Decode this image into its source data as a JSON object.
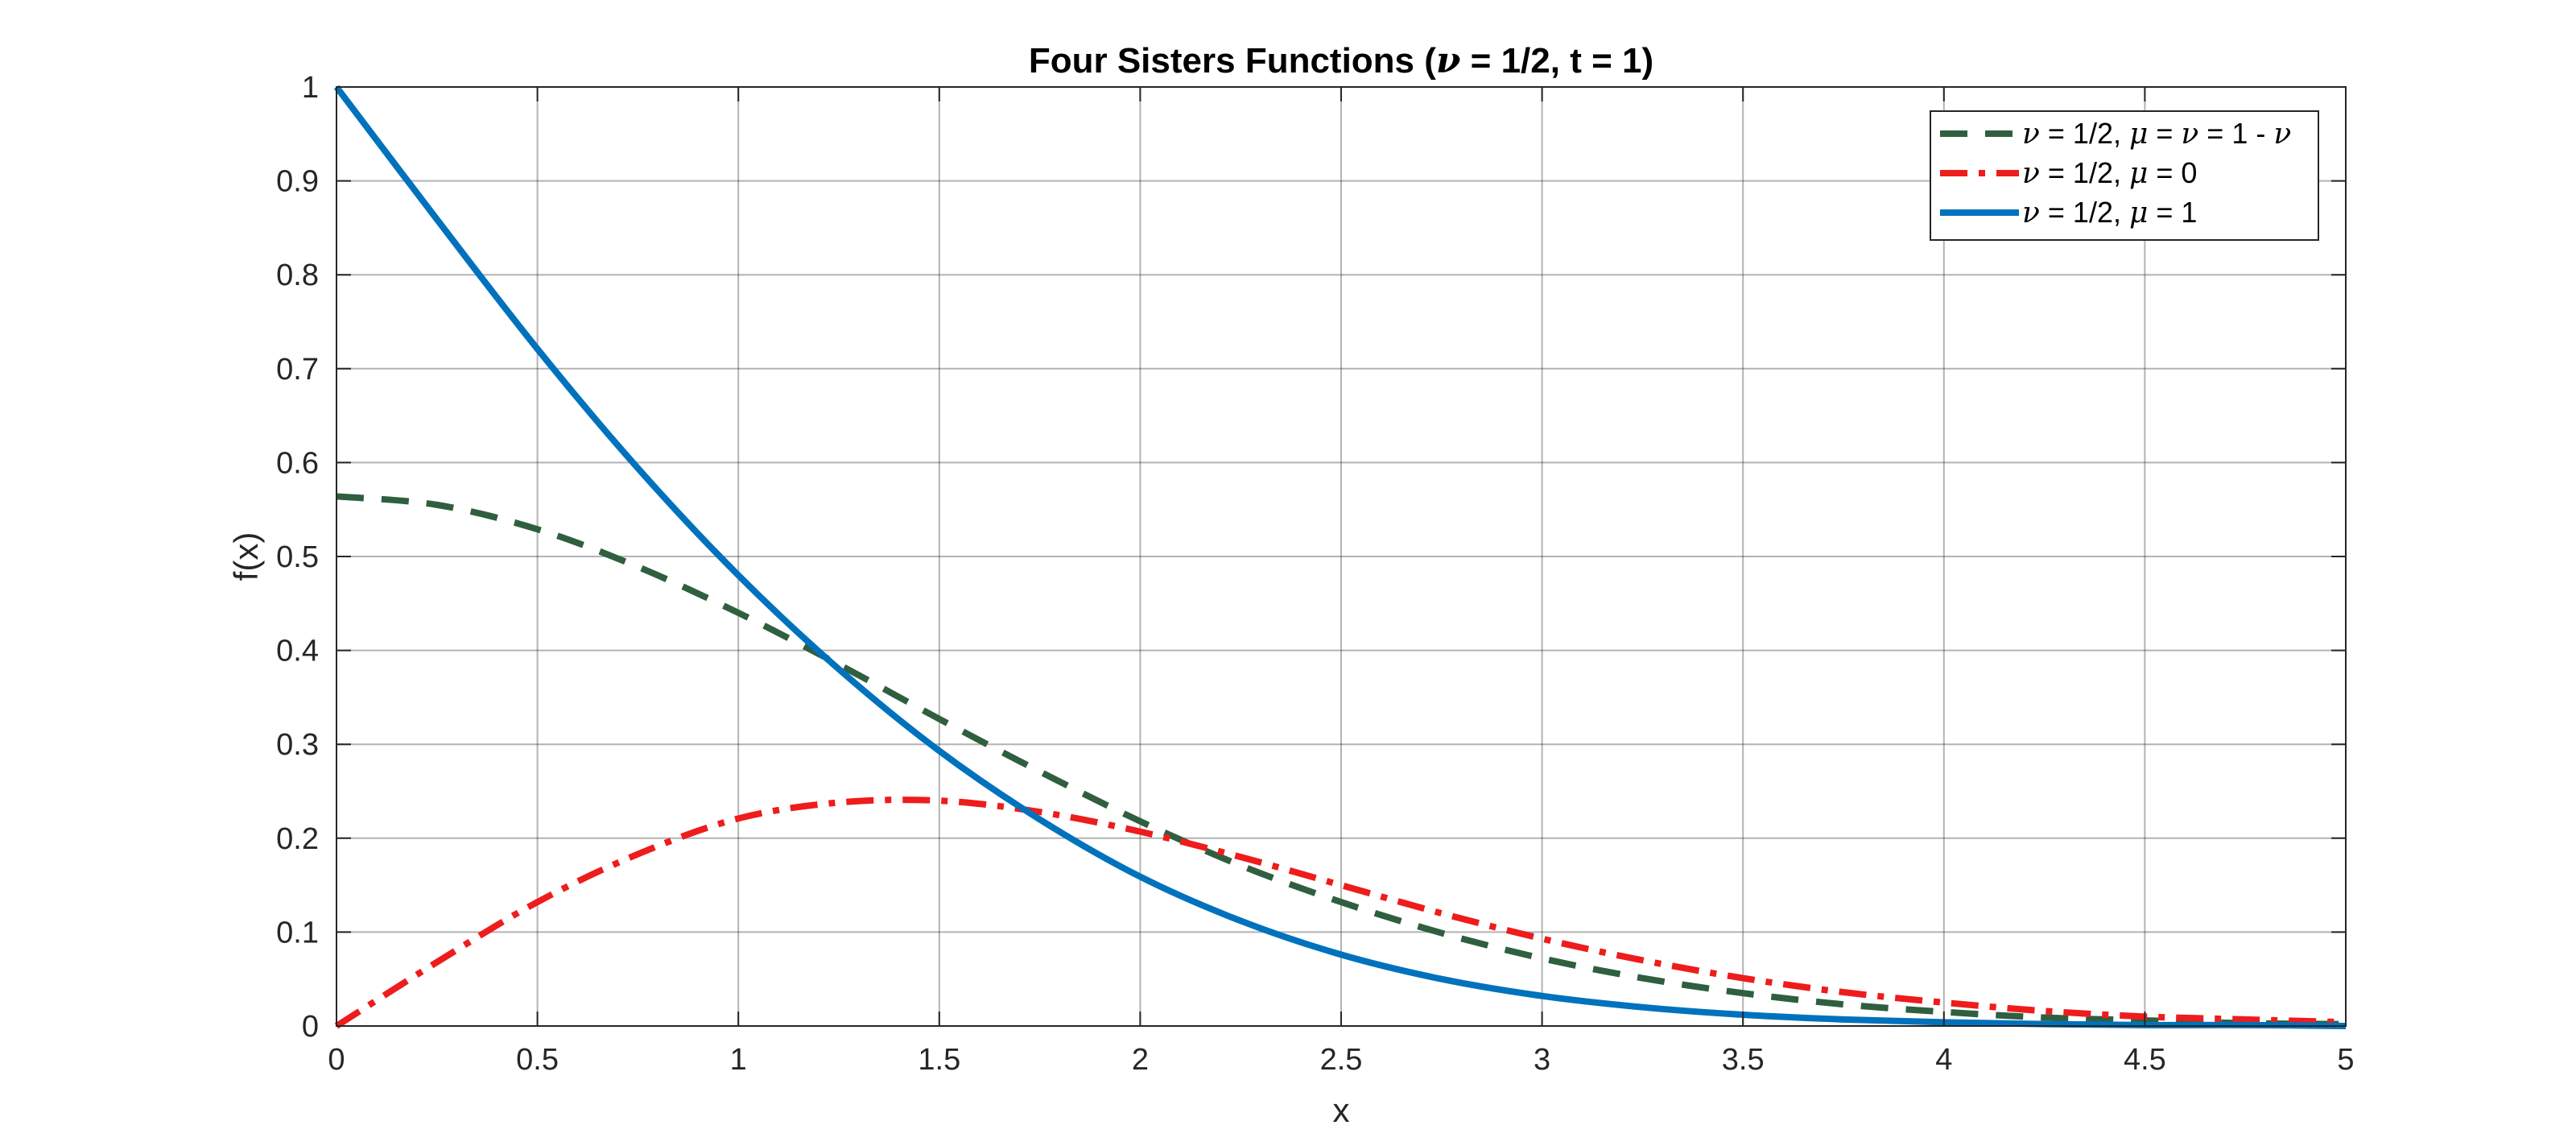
{
  "chart_data": {
    "type": "line",
    "title_parts": [
      {
        "text": "Four Sisters Functions (",
        "greek": false
      },
      {
        "text": "ν",
        "greek": true
      },
      {
        "text": " = 1/2, t = 1)",
        "greek": false
      }
    ],
    "xlabel": "x",
    "ylabel": "f(x)",
    "xlim": [
      0,
      5
    ],
    "ylim": [
      0,
      1
    ],
    "xticks": [
      0,
      0.5,
      1,
      1.5,
      2,
      2.5,
      3,
      3.5,
      4,
      4.5,
      5
    ],
    "xtick_labels": [
      "0",
      "0.5",
      "1",
      "1.5",
      "2",
      "2.5",
      "3",
      "3.5",
      "4",
      "4.5",
      "5"
    ],
    "yticks": [
      0,
      0.1,
      0.2,
      0.3,
      0.4,
      0.5,
      0.6,
      0.7,
      0.8,
      0.9,
      1
    ],
    "ytick_labels": [
      "0",
      "0.1",
      "0.2",
      "0.3",
      "0.4",
      "0.5",
      "0.6",
      "0.7",
      "0.8",
      "0.9",
      "1"
    ],
    "grid": true,
    "legend_position": "top-right",
    "series": [
      {
        "name_parts": [
          {
            "text": "ν",
            "greek": true
          },
          {
            "text": " = 1/2, ",
            "greek": false
          },
          {
            "text": "μ",
            "greek": true
          },
          {
            "text": " = ",
            "greek": false
          },
          {
            "text": "ν",
            "greek": true
          },
          {
            "text": " = 1 - ",
            "greek": false
          },
          {
            "text": "ν",
            "greek": true
          }
        ],
        "color": "#2f5f3f",
        "style": "dashed",
        "x": [
          0,
          0.25,
          0.5,
          0.75,
          1,
          1.25,
          1.5,
          1.75,
          2,
          2.25,
          2.5,
          2.75,
          3,
          3.25,
          3.5,
          3.75,
          4,
          4.25,
          4.5,
          4.75,
          5
        ],
        "y": [
          0.564,
          0.555,
          0.529,
          0.489,
          0.44,
          0.385,
          0.327,
          0.271,
          0.218,
          0.171,
          0.132,
          0.099,
          0.072,
          0.051,
          0.035,
          0.023,
          0.015,
          0.009,
          0.006,
          0.003,
          0.002
        ]
      },
      {
        "name_parts": [
          {
            "text": "ν",
            "greek": true
          },
          {
            "text": " = 1/2, ",
            "greek": false
          },
          {
            "text": "μ",
            "greek": true
          },
          {
            "text": " = 0",
            "greek": false
          }
        ],
        "color": "#ee1c1c",
        "style": "dashdot",
        "x": [
          0,
          0.25,
          0.5,
          0.75,
          1,
          1.25,
          1.5,
          1.75,
          2,
          2.25,
          2.5,
          2.75,
          3,
          3.25,
          3.5,
          3.75,
          4,
          4.25,
          4.5,
          4.75,
          5
        ],
        "y": [
          0,
          0.068,
          0.132,
          0.183,
          0.221,
          0.238,
          0.24,
          0.228,
          0.207,
          0.18,
          0.15,
          0.12,
          0.093,
          0.07,
          0.051,
          0.036,
          0.025,
          0.016,
          0.01,
          0.007,
          0.004
        ]
      },
      {
        "name_parts": [
          {
            "text": "ν",
            "greek": true
          },
          {
            "text": " = 1/2, ",
            "greek": false
          },
          {
            "text": "μ",
            "greek": true
          },
          {
            "text": " = 1",
            "greek": false
          }
        ],
        "color": "#0072bd",
        "style": "solid",
        "x": [
          0,
          0.25,
          0.5,
          0.75,
          1,
          1.25,
          1.5,
          1.75,
          2,
          2.25,
          2.5,
          2.75,
          3,
          3.25,
          3.5,
          3.75,
          4,
          4.25,
          4.5,
          4.75,
          5
        ],
        "y": [
          1.0,
          0.859,
          0.721,
          0.594,
          0.48,
          0.38,
          0.293,
          0.22,
          0.159,
          0.112,
          0.076,
          0.05,
          0.032,
          0.02,
          0.012,
          0.007,
          0.004,
          0.002,
          0.001,
          0.001,
          0.0
        ]
      }
    ]
  }
}
